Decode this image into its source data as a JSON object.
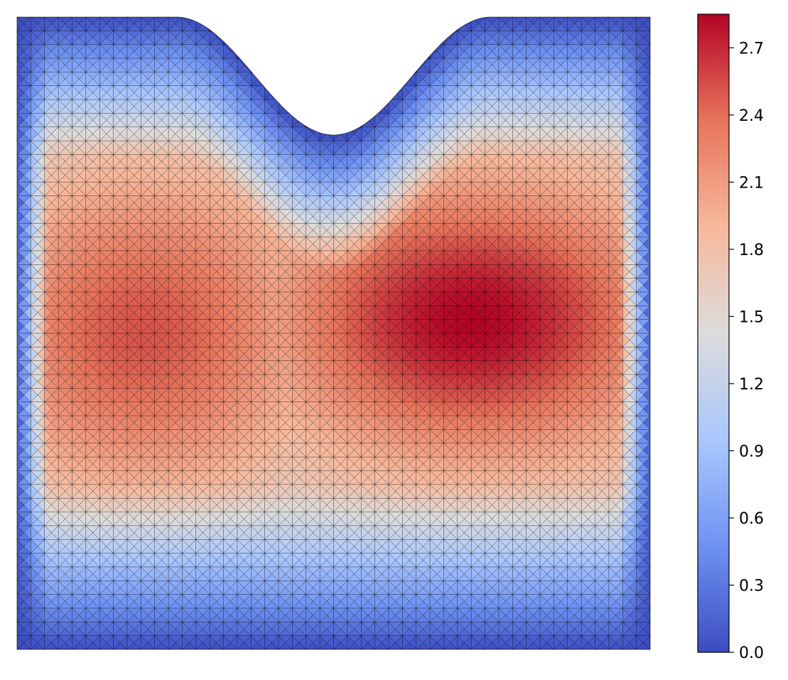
{
  "chart_data": {
    "type": "heatmap",
    "title": "",
    "xlabel": "",
    "ylabel": "",
    "plot_type": "triangulated mesh colour field (tripcolor with mesh edges)",
    "domain": {
      "shape": "square with curved notch cut from top edge",
      "axes_visible": false
    },
    "colormap": {
      "name": "coolwarm",
      "stops": [
        "#3b4cc0",
        "#6f92f3",
        "#aac7fd",
        "#dddcdc",
        "#f7b89c",
        "#e7745b",
        "#b40426"
      ]
    },
    "colorbar": {
      "position": "right",
      "vmin": 0.0,
      "vmax": 2.85,
      "tick_values": [
        0.0,
        0.3,
        0.6,
        0.9,
        1.2,
        1.5,
        1.8,
        2.1,
        2.4,
        2.7
      ],
      "tick_labels": [
        "0.0",
        "0.3",
        "0.6",
        "0.9",
        "1.2",
        "1.5",
        "1.8",
        "2.1",
        "2.4",
        "2.7"
      ]
    },
    "field_features": [
      {
        "description": "zero value on bottom, left and right boundaries and notch edge",
        "value": 0.0
      },
      {
        "description": "global maximum band right-centre",
        "x": 0.72,
        "y": 0.48,
        "value": 2.85
      },
      {
        "description": "secondary high region left-centre",
        "x": 0.2,
        "y": 0.5,
        "value": 2.45
      }
    ],
    "mesh_edges": "black, thin"
  }
}
